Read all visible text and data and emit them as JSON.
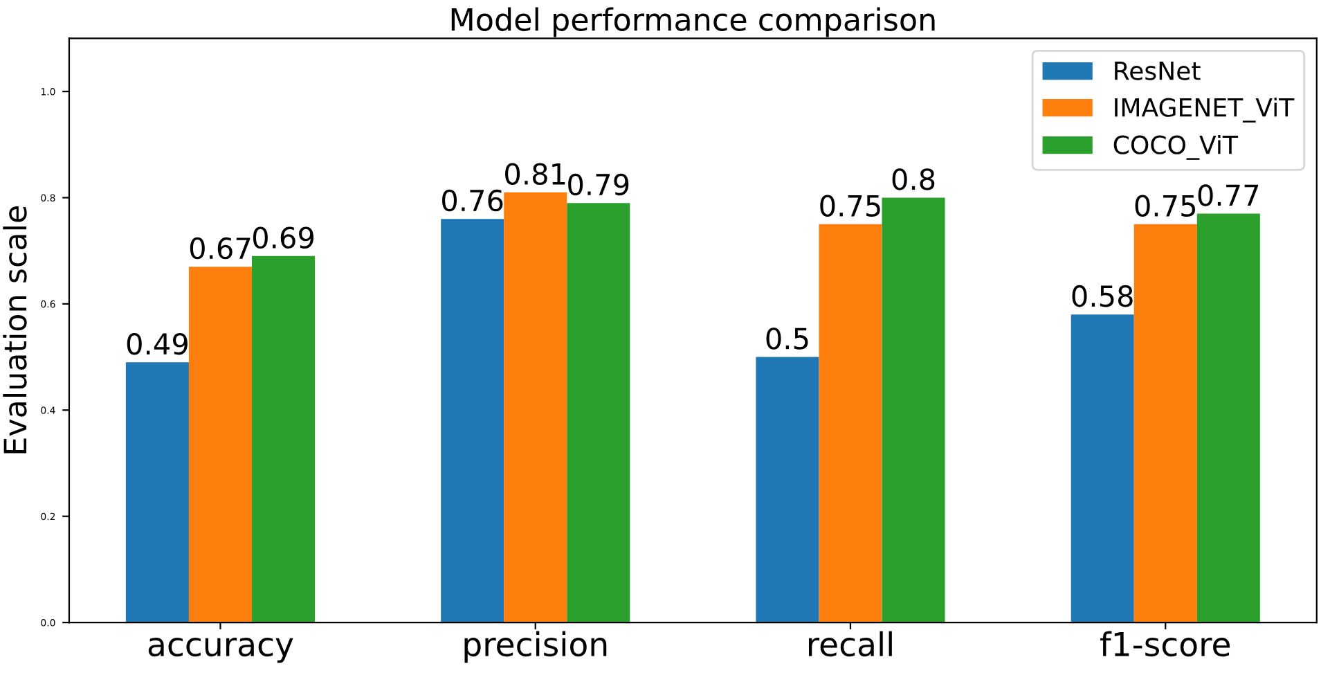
{
  "chart_data": {
    "type": "bar",
    "title": "Model performance comparison",
    "ylabel": "Evaluation scale",
    "categories": [
      "accuracy",
      "precision",
      "recall",
      "f1-score"
    ],
    "series": [
      {
        "name": "ResNet",
        "color": "#1f77b4",
        "values": [
          0.49,
          0.76,
          0.5,
          0.58
        ]
      },
      {
        "name": "IMAGENET_ViT",
        "color": "#ff7f0e",
        "values": [
          0.67,
          0.81,
          0.75,
          0.75
        ]
      },
      {
        "name": "COCO_ViT",
        "color": "#2ca02c",
        "values": [
          0.69,
          0.79,
          0.8,
          0.77
        ]
      }
    ],
    "ylim": [
      0,
      1.1
    ],
    "yticks": [
      {
        "value": 0,
        "label": "0.0"
      },
      0.2,
      0.4,
      0.6,
      0.8,
      {
        "value": 1,
        "label": "1.0"
      }
    ],
    "data_labels": true,
    "legend": "top right",
    "grid": false
  }
}
